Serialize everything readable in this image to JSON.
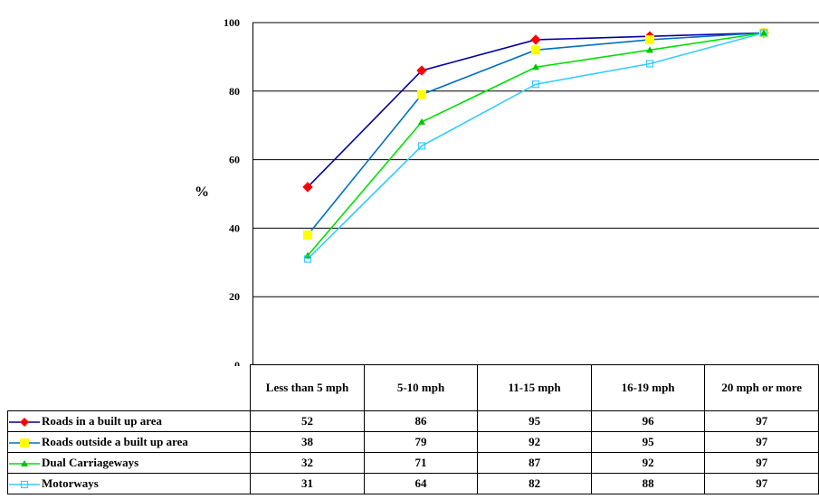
{
  "chart_data": {
    "type": "line",
    "ylabel": "%",
    "ylim": [
      0,
      100
    ],
    "yticks": [
      0,
      20,
      40,
      60,
      80,
      100
    ],
    "grid": true,
    "categories": [
      "Less than 5 mph",
      "5-10 mph",
      "11-15 mph",
      "16-19 mph",
      "20 mph or more"
    ],
    "series": [
      {
        "name": "Roads in a built up area",
        "values": [
          52,
          86,
          95,
          96,
          97
        ],
        "line_color": "#0000A0",
        "marker_color": "#FF0000",
        "marker": "diamond"
      },
      {
        "name": "Roads outside a built up area",
        "values": [
          38,
          79,
          92,
          95,
          97
        ],
        "line_color": "#0070C0",
        "marker_color": "#FFFF00",
        "marker": "square"
      },
      {
        "name": "Dual Carriageways",
        "values": [
          32,
          71,
          87,
          92,
          97
        ],
        "line_color": "#00E000",
        "marker_color": "#00C000",
        "marker": "triangle"
      },
      {
        "name": "Motorways",
        "values": [
          31,
          64,
          82,
          88,
          97
        ],
        "line_color": "#33CCFF",
        "marker_color": "#33CCFF",
        "marker": "square-open"
      }
    ]
  }
}
